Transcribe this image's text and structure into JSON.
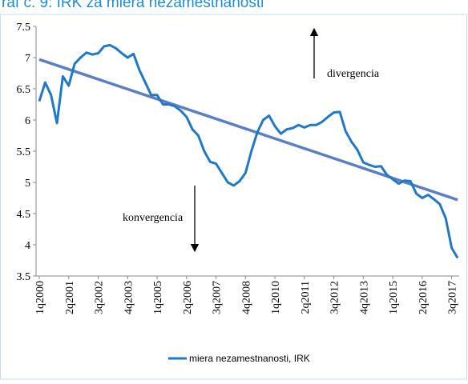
{
  "chart_data": {
    "type": "line",
    "title": "raf č. 9: IRK za miera nezamestnanosti",
    "categories": [
      "1q2000",
      null,
      null,
      null,
      null,
      "2q2001",
      null,
      null,
      null,
      null,
      "3q2002",
      null,
      null,
      null,
      null,
      "4q2003",
      null,
      null,
      null,
      null,
      "1q2005",
      null,
      null,
      null,
      null,
      "2q2006",
      null,
      null,
      null,
      null,
      "3q2007",
      null,
      null,
      null,
      null,
      "4q2008",
      null,
      null,
      null,
      null,
      "1q2010",
      null,
      null,
      null,
      null,
      "2q2011",
      null,
      null,
      null,
      null,
      "3q2012",
      null,
      null,
      null,
      null,
      "4q2013",
      null,
      null,
      null,
      null,
      "1q2015",
      null,
      null,
      null,
      null,
      "2q2016",
      null,
      null,
      null,
      null,
      "3q2017",
      null
    ],
    "series": [
      {
        "name": "miera nezamestnanosti, IRK",
        "color": "#1f78c8",
        "values": [
          6.3,
          6.6,
          6.4,
          5.95,
          6.7,
          6.55,
          6.9,
          7.0,
          7.08,
          7.05,
          7.07,
          7.18,
          7.2,
          7.15,
          7.07,
          7.0,
          7.06,
          6.8,
          6.6,
          6.4,
          6.4,
          6.25,
          6.25,
          6.22,
          6.15,
          6.05,
          5.85,
          5.75,
          5.5,
          5.33,
          5.3,
          5.15,
          5.0,
          4.95,
          5.02,
          5.15,
          5.5,
          5.8,
          6.0,
          6.07,
          5.9,
          5.78,
          5.85,
          5.87,
          5.92,
          5.88,
          5.92,
          5.92,
          5.97,
          6.05,
          6.12,
          6.13,
          5.82,
          5.65,
          5.52,
          5.32,
          5.28,
          5.25,
          5.26,
          5.12,
          5.05,
          4.98,
          5.03,
          5.02,
          4.82,
          4.75,
          4.8,
          4.73,
          4.65,
          4.42,
          3.95,
          3.79
        ]
      }
    ],
    "trend_line": {
      "start": 6.97,
      "end": 4.72,
      "color": "#5b7fc4"
    },
    "annotations": [
      {
        "text": "divergencia",
        "direction": "up"
      },
      {
        "text": "konvergencia",
        "direction": "down"
      }
    ],
    "ylim": [
      3.5,
      7.5
    ],
    "yticks": [
      {
        "value": 3.5,
        "label": "3.5"
      },
      4,
      {
        "value": 4.5,
        "label": "4.5"
      },
      5,
      {
        "value": 5.5,
        "label": "5.5"
      },
      6,
      {
        "value": 6.5,
        "label": "6.5"
      },
      7,
      {
        "value": 7.5,
        "label": "7.5"
      }
    ],
    "grid": false
  }
}
